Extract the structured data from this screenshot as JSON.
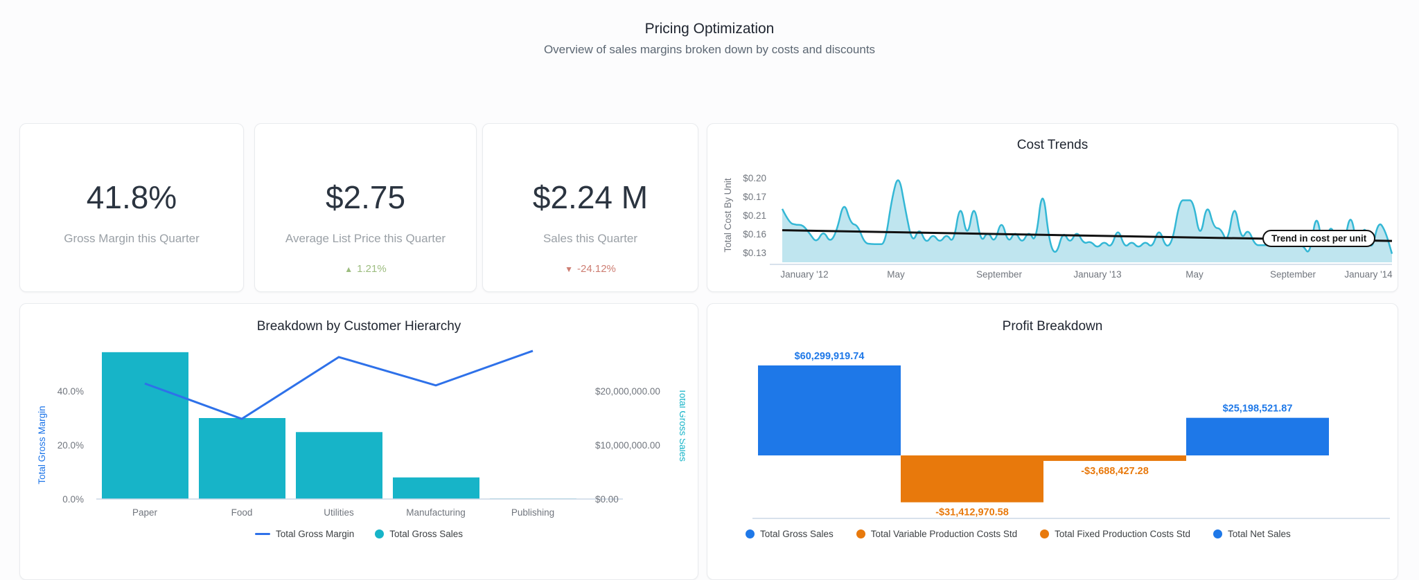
{
  "header": {
    "title": "Pricing Optimization",
    "subtitle": "Overview of sales margins broken down by costs and discounts"
  },
  "kpis": [
    {
      "value": "41.8%",
      "label": "Gross Margin this Quarter"
    },
    {
      "value": "$2.75",
      "label": "Average List Price this Quarter",
      "delta": {
        "direction": "up",
        "icon": "▲",
        "text": "1.21%",
        "color": "#9cbc7f"
      }
    },
    {
      "value": "$2.24 M",
      "label": "Sales this Quarter",
      "delta": {
        "direction": "down",
        "icon": "▼",
        "text": "-24.12%",
        "color": "#cd7d72"
      }
    }
  ],
  "chart_data": [
    {
      "id": "cost_trends",
      "type": "area",
      "title": "Cost Trends",
      "ylabel": "Total Cost By Unit",
      "y_tick_labels": [
        "$0.20",
        "$0.17",
        "$0.21",
        "$0.16",
        "$0.13"
      ],
      "x_tick_labels": [
        "January '12",
        "May",
        "September",
        "January '13",
        "May",
        "September",
        "January '14"
      ],
      "annotation": "Trend in cost per unit",
      "series_name": "Total Cost By Unit",
      "value_range": [
        0.12,
        0.21
      ],
      "values": [
        0.17,
        0.157,
        0.155,
        0.155,
        0.147,
        0.138,
        0.15,
        0.138,
        0.15,
        0.178,
        0.156,
        0.155,
        0.138,
        0.137,
        0.137,
        0.137,
        0.18,
        0.204,
        0.168,
        0.137,
        0.153,
        0.137,
        0.147,
        0.138,
        0.147,
        0.137,
        0.178,
        0.14,
        0.178,
        0.137,
        0.15,
        0.137,
        0.161,
        0.137,
        0.15,
        0.137,
        0.15,
        0.137,
        0.194,
        0.137,
        0.126,
        0.15,
        0.137,
        0.15,
        0.137,
        0.14,
        0.133,
        0.14,
        0.133,
        0.153,
        0.133,
        0.14,
        0.133,
        0.14,
        0.133,
        0.153,
        0.133,
        0.14,
        0.178,
        0.178,
        0.178,
        0.14,
        0.177,
        0.152,
        0.152,
        0.137,
        0.178,
        0.14,
        0.152,
        0.136,
        0.136,
        0.136,
        0.136,
        0.136,
        0.136,
        0.136,
        0.136,
        0.126,
        0.17,
        0.126,
        0.158,
        0.136,
        0.136,
        0.169,
        0.128,
        0.158,
        0.128,
        0.159,
        0.15,
        0.128
      ],
      "trend": {
        "start_value": 0.15,
        "end_value": 0.14
      },
      "colors": {
        "line": "#33b7d5",
        "fill": "#bfe5ef",
        "trend": "#111111",
        "axis_text": "#70757d",
        "axis_line": "#ccd7e6"
      }
    },
    {
      "id": "customer_hierarchy",
      "type": "bar",
      "title": "Breakdown by Customer Hierarchy",
      "categories": [
        "Paper",
        "Food",
        "Utilities",
        "Manufacturing",
        "Publishing"
      ],
      "series": [
        {
          "name": "Total Gross Margin",
          "type": "line",
          "axis": "left",
          "unit": "%",
          "values": [
            42.8,
            29.7,
            52.6,
            42.1,
            54.9
          ],
          "color": "#2e71e9"
        },
        {
          "name": "Total Gross Sales",
          "type": "bar",
          "axis": "right",
          "unit": "$",
          "values": [
            27200000,
            15000000,
            12400000,
            4000000,
            100000
          ],
          "color": "#17b4c8"
        }
      ],
      "left_axis": {
        "label": "Total Gross Margin",
        "ticks": [
          "0.0%",
          "20.0%",
          "40.0%"
        ],
        "tick_values": [
          0,
          20,
          40
        ],
        "color": "#1a73e8"
      },
      "right_axis": {
        "label": "Total Gross Sales",
        "ticks": [
          "$0.00",
          "$10,000,000.00",
          "$20,000,000.00"
        ],
        "tick_values": [
          0,
          10000000,
          20000000
        ],
        "color": "#17b4c8"
      },
      "legend": [
        {
          "label": "Total Gross Margin",
          "marker": "dash",
          "color": "#2e71e9"
        },
        {
          "label": "Total Gross Sales",
          "marker": "dot",
          "color": "#17b4c8"
        }
      ],
      "colors": {
        "axis_text": "#70757d",
        "axis_line": "#ccd7e6"
      }
    },
    {
      "id": "profit_breakdown",
      "type": "bar",
      "title": "Profit Breakdown",
      "bars": [
        {
          "name": "Total Gross Sales",
          "value": 60299919.74,
          "label": "$60,299,919.74",
          "color": "#1e78e8"
        },
        {
          "name": "Total Variable Production Costs Std",
          "value": -31412970.58,
          "label": "-$31,412,970.58",
          "color": "#e8790c"
        },
        {
          "name": "Total Fixed Production Costs Std",
          "value": -3688427.28,
          "label": "-$3,688,427.28",
          "color": "#e8790c"
        },
        {
          "name": "Total Net Sales",
          "value": 25198521.87,
          "label": "$25,198,521.87",
          "color": "#1e78e8"
        }
      ],
      "legend": [
        {
          "label": "Total Gross Sales",
          "marker": "dot",
          "color": "#1e78e8"
        },
        {
          "label": "Total Variable Production Costs Std",
          "marker": "dot",
          "color": "#e8790c"
        },
        {
          "label": "Total Fixed Production Costs Std",
          "marker": "dot",
          "color": "#e8790c"
        },
        {
          "label": "Total Net Sales",
          "marker": "dot",
          "color": "#1e78e8"
        }
      ],
      "colors": {
        "axis_line": "#ccd7e6"
      }
    }
  ]
}
